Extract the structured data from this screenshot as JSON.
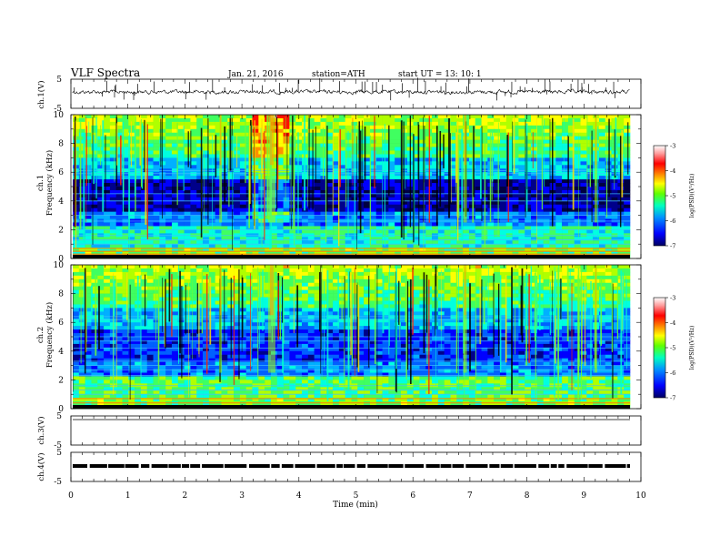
{
  "header": {
    "title": "VLF  Spectra",
    "date": "Jan. 21, 2016",
    "station": "station=ATH",
    "start": "start  UT  =   13: 10: 1"
  },
  "colors": {
    "black": "#000000",
    "background": "#ffffff"
  },
  "chart_data": [
    {
      "type": "line",
      "name": "ch1-waveform",
      "ylabel": "ch.1(V)",
      "ylim": [
        -5,
        5
      ],
      "yticks": [
        "5",
        "-5"
      ],
      "x_range_min": [
        0,
        9.8
      ],
      "note_values": "noisy waveform centered near 0 with spikes"
    },
    {
      "type": "heatmap",
      "name": "ch1-spectrogram",
      "ylabel_top": "ch.1",
      "ylabel": "Frequency  (kHz)",
      "ylim": [
        0,
        10
      ],
      "yticks": [
        "0",
        "2",
        "4",
        "6",
        "8",
        "10"
      ],
      "colorbar": {
        "label": "log(PSD)(V²/Hz)",
        "ticks": [
          "-3",
          "-4",
          "-5",
          "-6",
          "-7"
        ],
        "range": [
          -7,
          -3
        ],
        "colors": [
          "#000080",
          "#0000ff",
          "#00a0ff",
          "#00ffa0",
          "#a0ff00",
          "#ffff00",
          "#ff8000",
          "#ff0000",
          "#ff9090",
          "#ffffff"
        ]
      }
    },
    {
      "type": "heatmap",
      "name": "ch2-spectrogram",
      "ylabel_top": "ch.2",
      "ylabel": "Frequency  (kHz)",
      "ylim": [
        0,
        10
      ],
      "yticks": [
        "0",
        "2",
        "4",
        "6",
        "8",
        "10"
      ],
      "colorbar": {
        "label": "log(PSD)(V²/Hz)",
        "ticks": [
          "-3",
          "-4",
          "-5",
          "-6",
          "-7"
        ],
        "range": [
          -7,
          -3
        ]
      }
    },
    {
      "type": "line",
      "name": "ch3-waveform",
      "ylabel": "ch.3(V)",
      "ylim": [
        -5,
        5
      ],
      "yticks": [
        "5",
        "-5"
      ]
    },
    {
      "type": "line",
      "name": "ch4-waveform",
      "ylabel": "ch.4(V)",
      "ylim": [
        -5,
        5
      ],
      "yticks": [
        "5",
        "-5"
      ]
    }
  ],
  "xaxis": {
    "label": "Time  (min)",
    "range": [
      0,
      10
    ],
    "ticks": [
      "0",
      "1",
      "2",
      "3",
      "4",
      "5",
      "6",
      "7",
      "8",
      "9",
      "10"
    ]
  }
}
